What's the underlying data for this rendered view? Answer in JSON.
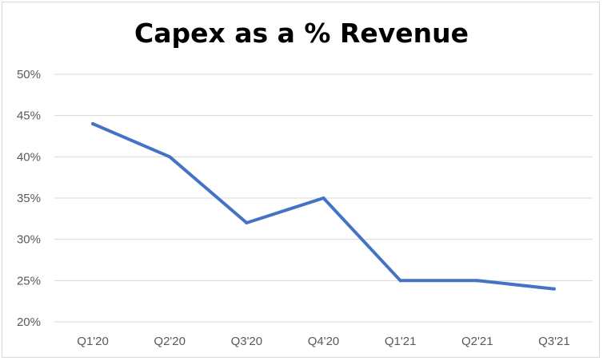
{
  "chart_data": {
    "type": "line",
    "title": "Capex as a % Revenue",
    "xlabel": "",
    "ylabel": "",
    "categories": [
      "Q1'20",
      "Q2'20",
      "Q3'20",
      "Q4'20",
      "Q1'21",
      "Q2'21",
      "Q3'21"
    ],
    "series": [
      {
        "values": [
          44,
          40,
          32,
          35,
          25,
          25,
          24
        ]
      }
    ],
    "ylim": [
      20,
      50
    ],
    "yticks": [
      20,
      25,
      30,
      35,
      40,
      45,
      50
    ],
    "ytick_labels": [
      "20%",
      "25%",
      "30%",
      "35%",
      "40%",
      "45%",
      "50%"
    ],
    "grid": true,
    "legend": "none",
    "colors": {
      "line": "#4472c4",
      "grid": "#d9d9d9",
      "tick_text": "#595959"
    }
  }
}
